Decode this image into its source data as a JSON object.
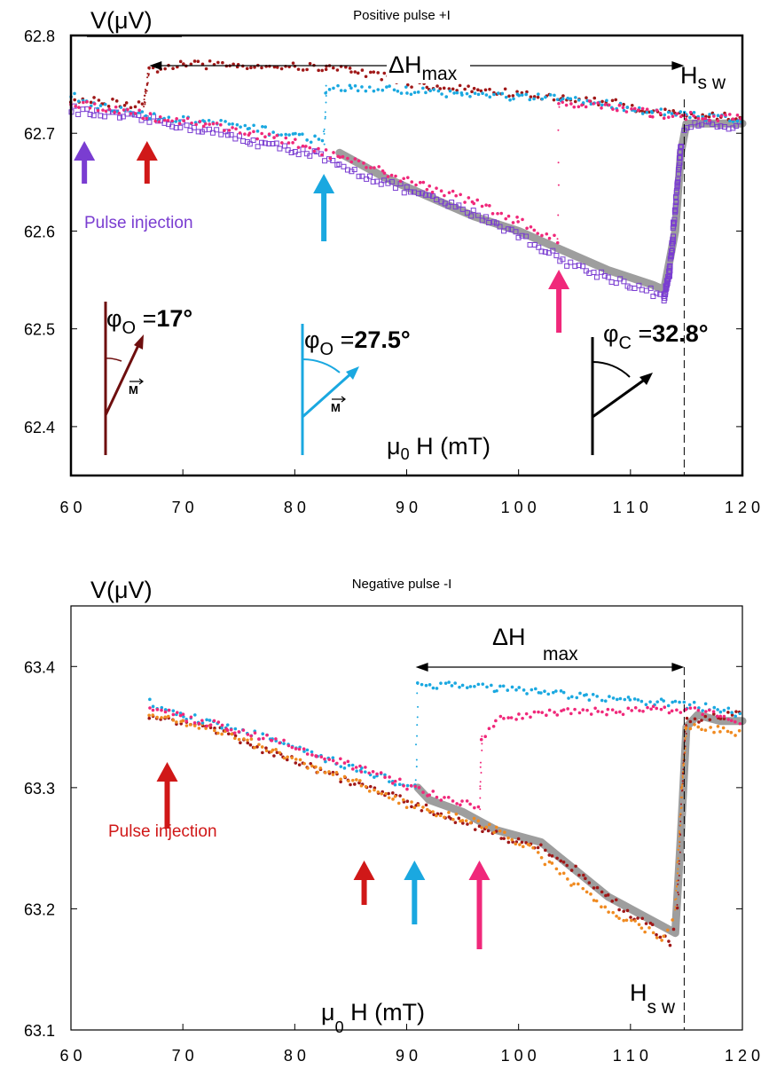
{
  "chart_data": [
    {
      "type": "scatter",
      "title": "Positive pulse +I",
      "ylabel": "V(μV)",
      "xlabel_prefix": "μ",
      "xlabel_sub": "0",
      "xlabel_rest": " H (mT)",
      "xlim": [
        60,
        120
      ],
      "ylim": [
        62.35,
        62.8
      ],
      "xticks": [
        60,
        70,
        80,
        90,
        100,
        110,
        120
      ],
      "xtick_labels": [
        "6 0",
        "7 0",
        "8 0",
        "9 0",
        "1 0 0",
        "1 1 0",
        "1 2 0"
      ],
      "yticks": [
        62.4,
        62.5,
        62.6,
        62.7,
        62.8
      ],
      "ytick_labels": [
        "62.4",
        "62.5",
        "62.6",
        "62.7",
        "62.8"
      ],
      "colors": {
        "gray": "#9e9e9e",
        "purple": "#7a3dd1",
        "red": "#d01818",
        "darkred": "#a01818",
        "cyan": "#1aa8e0",
        "pink": "#f0287a",
        "dark": "#6e0e0e"
      },
      "series": [
        {
          "color": "gray",
          "style": "band",
          "points": [
            [
              84,
              62.68
            ],
            [
              88,
              62.655
            ],
            [
              92,
              62.635
            ],
            [
              96,
              62.615
            ],
            [
              100,
              62.6
            ],
            [
              104,
              62.58
            ],
            [
              108,
              62.56
            ],
            [
              112,
              62.545
            ],
            [
              113,
              62.54
            ],
            [
              114,
              62.6
            ],
            [
              114.5,
              62.68
            ],
            [
              115,
              62.71
            ],
            [
              120,
              62.71
            ]
          ]
        },
        {
          "color": "purple",
          "style": "squares",
          "points": [
            [
              60,
              62.725
            ],
            [
              62,
              62.72
            ],
            [
              64,
              62.718
            ],
            [
              66,
              62.715
            ],
            [
              68,
              62.712
            ],
            [
              70,
              62.708
            ],
            [
              72,
              62.703
            ],
            [
              74,
              62.698
            ],
            [
              76,
              62.692
            ],
            [
              78,
              62.687
            ],
            [
              80,
              62.683
            ],
            [
              82,
              62.678
            ],
            [
              84,
              62.665
            ],
            [
              86,
              62.658
            ],
            [
              88,
              62.65
            ],
            [
              90,
              62.642
            ],
            [
              92,
              62.634
            ],
            [
              94,
              62.626
            ],
            [
              96,
              62.618
            ],
            [
              98,
              62.608
            ],
            [
              100,
              62.596
            ],
            [
              102,
              62.583
            ],
            [
              104,
              62.57
            ],
            [
              106,
              62.56
            ],
            [
              108,
              62.553
            ],
            [
              110,
              62.545
            ],
            [
              112,
              62.537
            ],
            [
              113,
              62.53
            ],
            [
              113.5,
              62.56
            ],
            [
              114,
              62.62
            ],
            [
              114.5,
              62.69
            ],
            [
              115,
              62.708
            ],
            [
              117,
              62.708
            ],
            [
              120,
              62.708
            ]
          ]
        },
        {
          "color": "darkred",
          "style": "dots",
          "points": [
            [
              60,
              62.735
            ],
            [
              63,
              62.732
            ],
            [
              65,
              62.73
            ],
            [
              66.5,
              62.728
            ],
            [
              67,
              62.765
            ],
            [
              70,
              62.77
            ],
            [
              75,
              62.77
            ],
            [
              80,
              62.768
            ],
            [
              82.8,
              62.767
            ],
            [
              85,
              62.765
            ],
            [
              88,
              62.758
            ],
            [
              92,
              62.747
            ],
            [
              96,
              62.745
            ],
            [
              100,
              62.74
            ],
            [
              104,
              62.735
            ],
            [
              108,
              62.732
            ],
            [
              111,
              62.725
            ],
            [
              114,
              62.72
            ],
            [
              117,
              62.718
            ],
            [
              120,
              62.715
            ]
          ]
        },
        {
          "color": "cyan",
          "style": "dots",
          "points": [
            [
              60,
              62.74
            ],
            [
              62,
              62.73
            ],
            [
              65,
              62.722
            ],
            [
              68,
              62.715
            ],
            [
              72,
              62.712
            ],
            [
              76,
              62.705
            ],
            [
              80,
              62.698
            ],
            [
              82.6,
              62.692
            ],
            [
              82.8,
              62.745
            ],
            [
              85,
              62.746
            ],
            [
              90,
              62.744
            ],
            [
              95,
              62.74
            ],
            [
              100,
              62.737
            ],
            [
              104,
              62.735
            ],
            [
              108,
              62.73
            ],
            [
              112,
              62.722
            ],
            [
              115,
              62.718
            ],
            [
              120,
              62.715
            ]
          ]
        },
        {
          "color": "pink",
          "style": "dots",
          "points": [
            [
              60,
              62.73
            ],
            [
              64,
              62.725
            ],
            [
              68,
              62.715
            ],
            [
              72,
              62.71
            ],
            [
              76,
              62.7
            ],
            [
              80,
              62.69
            ],
            [
              84,
              62.675
            ],
            [
              88,
              62.66
            ],
            [
              92,
              62.645
            ],
            [
              96,
              62.63
            ],
            [
              100,
              62.61
            ],
            [
              103.5,
              62.59
            ],
            [
              103.6,
              62.73
            ],
            [
              106,
              62.73
            ],
            [
              109,
              62.725
            ],
            [
              112,
              62.72
            ],
            [
              115,
              62.718
            ],
            [
              120,
              62.715
            ]
          ]
        }
      ],
      "arrows": [
        {
          "x": 61.2,
          "color": "purple"
        },
        {
          "x": 66.8,
          "color": "red"
        },
        {
          "x": 82.6,
          "color": "cyan"
        },
        {
          "x": 103.6,
          "color": "pink"
        }
      ],
      "delta_label": "ΔH",
      "delta_sub": "max",
      "delta_range": [
        67,
        114.8
      ],
      "hsw_label": "H",
      "hsw_sub": "s w",
      "hsw_x": 114.8,
      "pulse_label": "Pulse   injection",
      "angle_labels": [
        {
          "phi": "φ",
          "sub": "O",
          "eq": " =",
          "val": "17°",
          "color": "dark"
        },
        {
          "phi": "φ",
          "sub": "O",
          "eq": " =",
          "val": "27.5°",
          "color": "cyan"
        },
        {
          "phi": "φ",
          "sub": "C",
          "eq": " =",
          "val": "32.8°",
          "color": "black"
        }
      ],
      "m_label": "M"
    },
    {
      "type": "scatter",
      "title": "Negative pulse -I",
      "ylabel": "V(μV)",
      "xlabel_prefix": "μ",
      "xlabel_sub": "0",
      "xlabel_rest": " H (mT)",
      "xlim": [
        60,
        120
      ],
      "ylim": [
        63.1,
        63.45
      ],
      "xticks": [
        60,
        70,
        80,
        90,
        100,
        110,
        120
      ],
      "xtick_labels": [
        "6 0",
        "7 0",
        "8 0",
        "9 0",
        "1 0 0",
        "1 1 0",
        "1 2 0"
      ],
      "yticks": [
        63.1,
        63.2,
        63.3,
        63.4
      ],
      "ytick_labels": [
        "63.1",
        "63.2",
        "63.3",
        "63.4"
      ],
      "colors": {
        "gray": "#9e9e9e",
        "red": "#d01818",
        "darkred": "#a01818",
        "cyan": "#1aa8e0",
        "pink": "#f0287a",
        "orange": "#f08a20"
      },
      "series": [
        {
          "color": "gray",
          "style": "band",
          "points": [
            [
              91,
              63.3
            ],
            [
              92,
              63.29
            ],
            [
              95,
              63.28
            ],
            [
              98,
              63.265
            ],
            [
              102,
              63.255
            ],
            [
              104,
              63.24
            ],
            [
              106,
              63.225
            ],
            [
              108,
              63.21
            ],
            [
              110,
              63.2
            ],
            [
              112,
              63.19
            ],
            [
              114,
              63.18
            ],
            [
              114.5,
              63.26
            ],
            [
              115,
              63.35
            ],
            [
              116,
              63.36
            ],
            [
              118,
              63.355
            ],
            [
              120,
              63.355
            ]
          ]
        },
        {
          "color": "darkred",
          "style": "dots",
          "points": [
            [
              67,
              63.358
            ],
            [
              70,
              63.355
            ],
            [
              73,
              63.348
            ],
            [
              76,
              63.335
            ],
            [
              79,
              63.325
            ],
            [
              82,
              63.315
            ],
            [
              85,
              63.305
            ],
            [
              88,
              63.295
            ],
            [
              91,
              63.285
            ],
            [
              94,
              63.275
            ],
            [
              97,
              63.265
            ],
            [
              100,
              63.255
            ],
            [
              102,
              63.25
            ],
            [
              104,
              63.24
            ],
            [
              106,
              63.225
            ],
            [
              108,
              63.21
            ],
            [
              110,
              63.195
            ],
            [
              112,
              63.185
            ],
            [
              113.5,
              63.17
            ],
            [
              114.2,
              63.2
            ],
            [
              114.6,
              63.3
            ],
            [
              115,
              63.355
            ],
            [
              118,
              63.36
            ],
            [
              120,
              63.36
            ]
          ]
        },
        {
          "color": "orange",
          "style": "dots",
          "points": [
            [
              67,
              63.36
            ],
            [
              70,
              63.355
            ],
            [
              74,
              63.345
            ],
            [
              78,
              63.33
            ],
            [
              82,
              63.315
            ],
            [
              86,
              63.303
            ],
            [
              89,
              63.29
            ],
            [
              92,
              63.28
            ],
            [
              95,
              63.275
            ],
            [
              98,
              63.265
            ],
            [
              101,
              63.25
            ],
            [
              103,
              63.235
            ],
            [
              105,
              63.22
            ],
            [
              107,
              63.205
            ],
            [
              109,
              63.195
            ],
            [
              111,
              63.185
            ],
            [
              113,
              63.175
            ],
            [
              114,
              63.2
            ],
            [
              114.6,
              63.3
            ],
            [
              115,
              63.35
            ],
            [
              118,
              63.348
            ],
            [
              120,
              63.345
            ]
          ]
        },
        {
          "color": "cyan",
          "style": "dots",
          "points": [
            [
              67,
              63.37
            ],
            [
              70,
              63.36
            ],
            [
              74,
              63.35
            ],
            [
              78,
              63.34
            ],
            [
              82,
              63.325
            ],
            [
              86,
              63.315
            ],
            [
              89,
              63.305
            ],
            [
              90.8,
              63.3
            ],
            [
              91,
              63.385
            ],
            [
              94,
              63.385
            ],
            [
              98,
              63.382
            ],
            [
              102,
              63.378
            ],
            [
              106,
              63.375
            ],
            [
              110,
              63.372
            ],
            [
              113,
              63.37
            ],
            [
              115,
              63.368
            ],
            [
              118,
              63.365
            ],
            [
              120,
              63.36
            ]
          ]
        },
        {
          "color": "pink",
          "style": "dots",
          "points": [
            [
              67,
              63.365
            ],
            [
              70,
              63.358
            ],
            [
              74,
              63.35
            ],
            [
              78,
              63.34
            ],
            [
              82,
              63.328
            ],
            [
              86,
              63.315
            ],
            [
              89,
              63.305
            ],
            [
              92,
              63.295
            ],
            [
              95,
              63.288
            ],
            [
              96.5,
              63.285
            ],
            [
              96.7,
              63.34
            ],
            [
              98,
              63.355
            ],
            [
              100,
              63.36
            ],
            [
              104,
              63.362
            ],
            [
              108,
              63.363
            ],
            [
              112,
              63.364
            ],
            [
              115,
              63.365
            ],
            [
              118,
              63.36
            ],
            [
              120,
              63.355
            ]
          ]
        }
      ],
      "arrows": [
        {
          "x": 68.6,
          "color": "red"
        },
        {
          "x": 86.2,
          "color": "red"
        },
        {
          "x": 90.7,
          "color": "cyan"
        },
        {
          "x": 96.5,
          "color": "pink"
        }
      ],
      "delta_label": "ΔH",
      "delta_sub": "max",
      "delta_range": [
        90.8,
        114.8
      ],
      "hsw_label": "H",
      "hsw_sub": "s w",
      "hsw_x": 114.8,
      "pulse_label": "Pulse   injection"
    }
  ]
}
